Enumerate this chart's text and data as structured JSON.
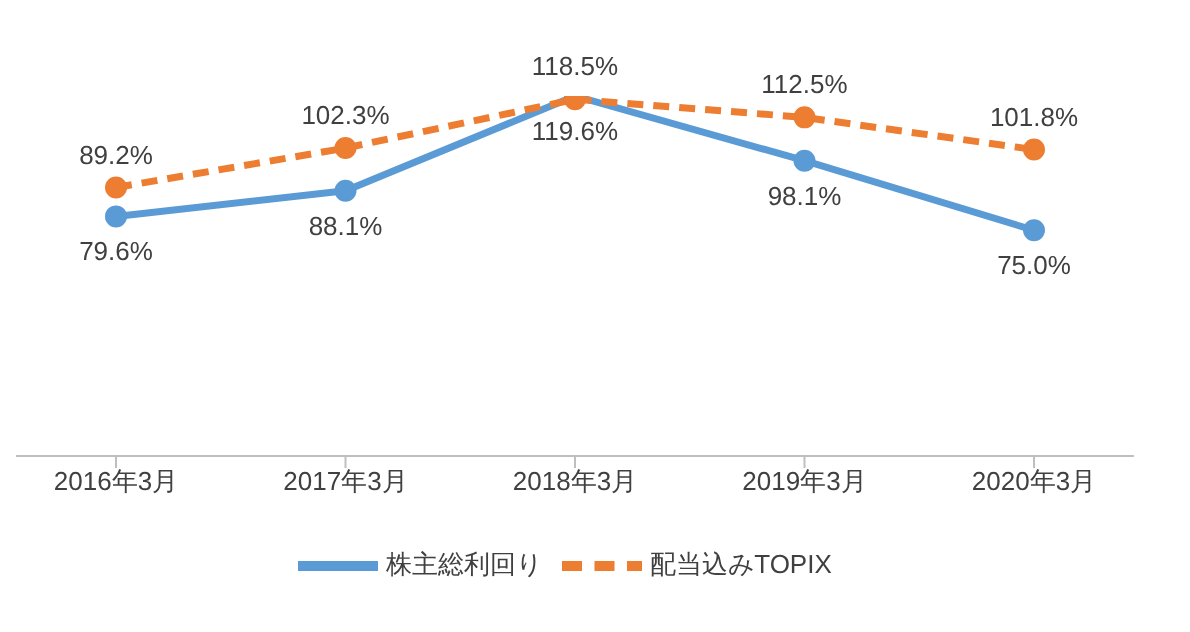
{
  "chart_data": {
    "type": "line",
    "categories": [
      "2016年3月",
      "2017年3月",
      "2018年3月",
      "2019年3月",
      "2020年3月"
    ],
    "series": [
      {
        "name": "株主総利回り",
        "color": "#5b9bd5",
        "values": [
          79.6,
          88.1,
          119.6,
          98.1,
          75.0
        ],
        "line_style": "solid",
        "value_labels": [
          "79.6%",
          "88.1%",
          "119.6%",
          "98.1%",
          "75.0%"
        ]
      },
      {
        "name": "配当込みTOPIX",
        "color": "#ed7d31",
        "values": [
          89.2,
          102.3,
          118.5,
          112.5,
          101.8
        ],
        "line_style": "dashed",
        "value_labels": [
          "89.2%",
          "102.3%",
          "118.5%",
          "112.5%",
          "101.8%"
        ]
      }
    ],
    "tick_labels": "x",
    "marker": "circle",
    "legend": "bottom"
  }
}
